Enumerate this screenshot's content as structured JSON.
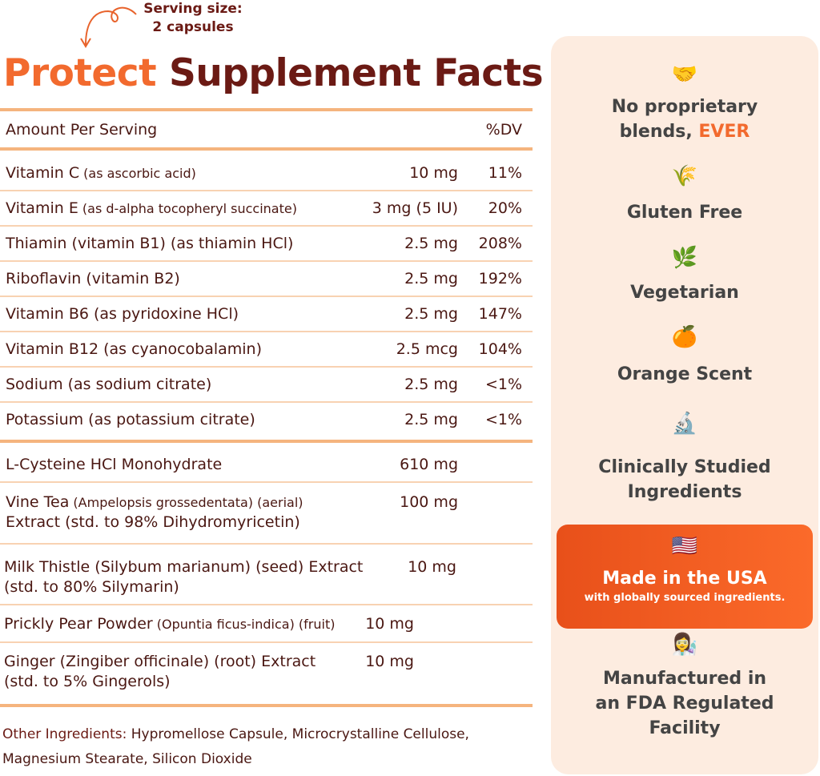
{
  "serving": {
    "line1": "Serving size:",
    "line2": "2 capsules"
  },
  "title": {
    "brand": "Protect",
    "rest": "Supplement Facts"
  },
  "header": {
    "amount": "Amount Per Serving",
    "dv": "%DV"
  },
  "vitamins": [
    {
      "name": "Vitamin C",
      "detail": " (as ascorbic acid)",
      "amount": "10 mg",
      "dv": "11%"
    },
    {
      "name": "Vitamin E",
      "detail": " (as d-alpha tocopheryl succinate)",
      "amount": "3 mg (5 IU)",
      "dv": "20%"
    },
    {
      "name": "Thiamin (vitamin B1) (as thiamin HCl)",
      "detail": "",
      "amount": "2.5 mg",
      "dv": "208%"
    },
    {
      "name": "Riboflavin (vitamin B2)",
      "detail": "",
      "amount": "2.5 mg",
      "dv": "192%"
    },
    {
      "name": "Vitamin B6 (as pyridoxine HCl)",
      "detail": "",
      "amount": "2.5 mg",
      "dv": "147%"
    },
    {
      "name": "Vitamin B12 (as cyanocobalamin)",
      "detail": "",
      "amount": "2.5 mcg",
      "dv": "104%"
    },
    {
      "name": "Sodium (as sodium citrate)",
      "detail": "",
      "amount": "2.5 mg",
      "dv": "<1%"
    },
    {
      "name": "Potassium (as potassium citrate)",
      "detail": "",
      "amount": "2.5 mg",
      "dv": "<1%"
    }
  ],
  "others": [
    {
      "line1": "L-Cysteine HCl Monohydrate",
      "line1_small": "",
      "line2": "",
      "amount": "610 mg"
    },
    {
      "line1": "Vine Tea",
      "line1_small": " (Ampelopsis grossedentata) (aerial)",
      "line2": "Extract (std. to 98% Dihydromyricetin)",
      "amount": "100 mg"
    },
    {
      "line1": "Milk Thistle (Silybum marianum) (seed) Extract",
      "line1_small": "",
      "line2": "(std. to 80% Silymarin)",
      "amount": "10 mg"
    },
    {
      "line1": "Prickly Pear Powder",
      "line1_small": " (Opuntia ficus-indica) (fruit)",
      "line2": "",
      "amount": "10 mg"
    },
    {
      "line1": "Ginger (Zingiber officinale) (root) Extract",
      "line1_small": "",
      "line2": "(std. to 5% Gingerols)",
      "amount": "10 mg"
    }
  ],
  "other_ingredients": {
    "label": "Other Ingredients:",
    "text": " Hypromellose Capsule, Microcrystalline Cellulose, Magnesium Stearate, Silicon Dioxide"
  },
  "features": [
    {
      "icon": "handshake-icon",
      "emoji": "🤝",
      "line1": "No proprietary",
      "line2": "blends, ",
      "accent": "EVER"
    },
    {
      "icon": "rice-icon",
      "emoji": "🌾",
      "line1": "Gluten Free"
    },
    {
      "icon": "herb-icon",
      "emoji": "🌿",
      "line1": "Vegetarian"
    },
    {
      "icon": "orange-icon",
      "emoji": "🍊",
      "line1": "Orange Scent"
    },
    {
      "icon": "microscope-icon",
      "emoji": "🔬",
      "line1": "Clinically Studied",
      "line2": "Ingredients"
    },
    {
      "icon": "us-flag-icon",
      "emoji": "🇺🇸",
      "line1": "Made in the USA",
      "line2": "with globally sourced ingredients."
    },
    {
      "icon": "scientist-icon",
      "emoji": "👩‍🔬",
      "line1": "Manufactured in",
      "line2": "an FDA Regulated",
      "line3": "Facility"
    }
  ],
  "colors": {
    "brand_orange": "#f26a2e",
    "title_maroon": "#6b1a14",
    "rule": "#f5b47e",
    "panel": "#fdece0"
  }
}
